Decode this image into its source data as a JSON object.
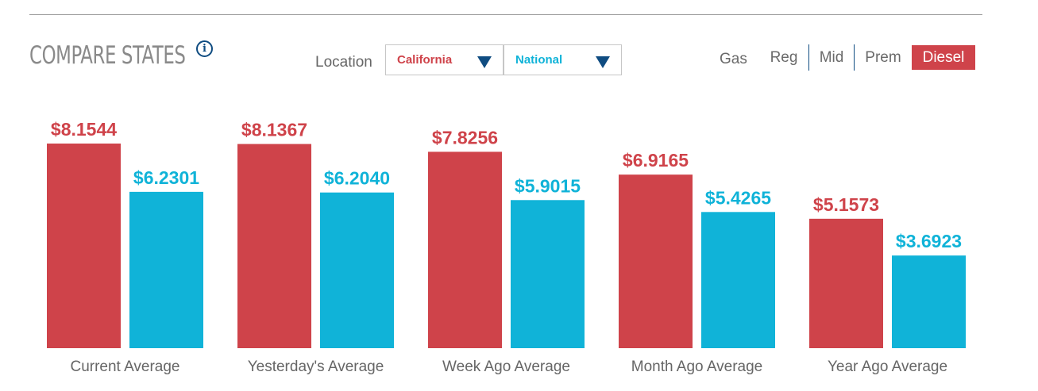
{
  "header": {
    "title": "COMPARE STATES",
    "info_icon": "info-icon"
  },
  "location": {
    "label": "Location",
    "state_select": "California",
    "compare_select": "National"
  },
  "fuel": {
    "label": "Gas",
    "tabs": [
      {
        "label": "Reg",
        "active": false
      },
      {
        "label": "Mid",
        "active": false
      },
      {
        "label": "Prem",
        "active": false
      },
      {
        "label": "Diesel",
        "active": true
      }
    ]
  },
  "colors": {
    "california": "#cf434a",
    "national": "#10b3d8",
    "accent": "#0f4c81"
  },
  "chart_data": {
    "type": "bar",
    "categories": [
      "Current Average",
      "Yesterday's Average",
      "Week Ago Average",
      "Month Ago Average",
      "Year Ago Average"
    ],
    "series": [
      {
        "name": "California",
        "values": [
          8.1544,
          8.1367,
          7.8256,
          6.9165,
          5.1573
        ],
        "labels": [
          "$8.1544",
          "$8.1367",
          "$7.8256",
          "$6.9165",
          "$5.1573"
        ]
      },
      {
        "name": "National",
        "values": [
          6.2301,
          6.204,
          5.9015,
          5.4265,
          3.6923
        ],
        "labels": [
          "$6.2301",
          "$6.2040",
          "$5.9015",
          "$5.4265",
          "$3.6923"
        ]
      }
    ],
    "title": "",
    "xlabel": "",
    "ylabel": "",
    "ylim": [
      0,
      8.1544
    ],
    "grid": false,
    "legend": "none"
  }
}
